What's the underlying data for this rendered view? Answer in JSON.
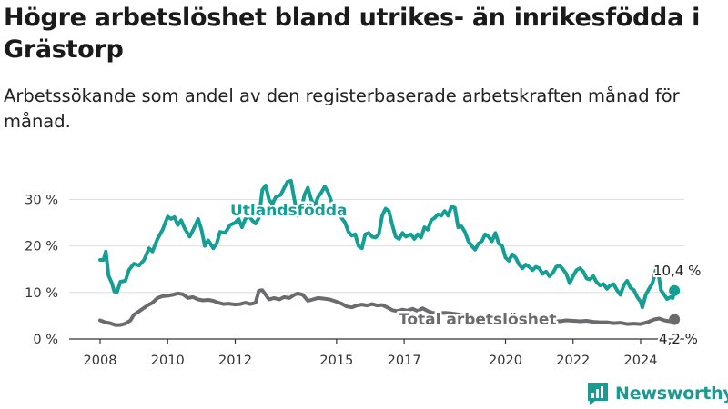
{
  "title": "Högre arbetslöshet bland utrikes- än inrikesfödda i Grästorp",
  "subtitle": "Arbetssökande som andel av den registerbaserade arbetskraften månad för månad.",
  "brand": "Newsworthy",
  "colors": {
    "foreign": "#159e94",
    "total": "#6b6b6e",
    "grid": "#dddddd",
    "axis": "#333333"
  },
  "chart_data": {
    "type": "line",
    "y_tick_labels": [
      "0 %",
      "10 %",
      "20 %",
      "30 %"
    ],
    "y_ticks": [
      0,
      10,
      20,
      30
    ],
    "x_tick_labels": [
      "2008",
      "2010",
      "2012",
      "2015",
      "2017",
      "2020",
      "2022",
      "2024"
    ],
    "x_ticks": [
      2008,
      2010,
      2012,
      2015,
      2017,
      2020,
      2022,
      2024
    ],
    "ylim": [
      0,
      35
    ],
    "xlim": [
      2007.1,
      2025.5
    ],
    "grid": true,
    "series": [
      {
        "name": "Utlandsfödda",
        "color": "#159e94",
        "end_label": "10,4 %",
        "points": [
          [
            2008.0,
            17.0
          ],
          [
            2008.1,
            17.0
          ],
          [
            2008.17,
            18.8
          ],
          [
            2008.25,
            13.6
          ],
          [
            2008.35,
            12.0
          ],
          [
            2008.42,
            10.2
          ],
          [
            2008.5,
            10.1
          ],
          [
            2008.6,
            12.3
          ],
          [
            2008.75,
            12.5
          ],
          [
            2008.85,
            14.8
          ],
          [
            2009.0,
            16.2
          ],
          [
            2009.15,
            15.8
          ],
          [
            2009.3,
            17.0
          ],
          [
            2009.45,
            19.5
          ],
          [
            2009.55,
            18.8
          ],
          [
            2009.7,
            21.5
          ],
          [
            2009.85,
            23.5
          ],
          [
            2010.0,
            26.3
          ],
          [
            2010.1,
            25.8
          ],
          [
            2010.2,
            26.2
          ],
          [
            2010.3,
            24.5
          ],
          [
            2010.4,
            25.5
          ],
          [
            2010.5,
            23.8
          ],
          [
            2010.65,
            22.0
          ],
          [
            2010.78,
            23.8
          ],
          [
            2010.9,
            25.8
          ],
          [
            2011.0,
            23.5
          ],
          [
            2011.1,
            20.0
          ],
          [
            2011.2,
            21.2
          ],
          [
            2011.35,
            19.5
          ],
          [
            2011.45,
            20.5
          ],
          [
            2011.55,
            23.0
          ],
          [
            2011.7,
            22.8
          ],
          [
            2011.85,
            24.5
          ],
          [
            2012.0,
            25.0
          ],
          [
            2012.1,
            25.8
          ],
          [
            2012.2,
            24.0
          ],
          [
            2012.3,
            25.8
          ],
          [
            2012.4,
            26.5
          ],
          [
            2012.5,
            25.5
          ],
          [
            2012.6,
            24.8
          ],
          [
            2012.7,
            26.0
          ],
          [
            2012.8,
            32.0
          ],
          [
            2012.9,
            33.0
          ],
          [
            2013.0,
            30.0
          ],
          [
            2013.1,
            29.0
          ],
          [
            2013.2,
            30.5
          ],
          [
            2013.35,
            31.0
          ],
          [
            2013.45,
            32.5
          ],
          [
            2013.55,
            33.8
          ],
          [
            2013.65,
            34.0
          ],
          [
            2013.75,
            30.0
          ],
          [
            2013.85,
            26.5
          ],
          [
            2013.95,
            27.5
          ],
          [
            2014.05,
            31.0
          ],
          [
            2014.15,
            32.5
          ],
          [
            2014.25,
            30.0
          ],
          [
            2014.35,
            28.5
          ],
          [
            2014.45,
            30.5
          ],
          [
            2014.55,
            31.5
          ],
          [
            2014.65,
            32.8
          ],
          [
            2014.75,
            31.5
          ],
          [
            2014.85,
            29.5
          ],
          [
            2014.95,
            28.0
          ],
          [
            2015.05,
            27.5
          ],
          [
            2015.15,
            26.0
          ],
          [
            2015.25,
            25.0
          ],
          [
            2015.35,
            23.0
          ],
          [
            2015.45,
            22.2
          ],
          [
            2015.55,
            22.5
          ],
          [
            2015.65,
            20.0
          ],
          [
            2015.75,
            19.5
          ],
          [
            2015.85,
            22.5
          ],
          [
            2015.95,
            22.8
          ],
          [
            2016.05,
            22.0
          ],
          [
            2016.15,
            21.8
          ],
          [
            2016.25,
            22.5
          ],
          [
            2016.35,
            26.5
          ],
          [
            2016.45,
            28.0
          ],
          [
            2016.55,
            27.5
          ],
          [
            2016.65,
            24.5
          ],
          [
            2016.75,
            22.0
          ],
          [
            2016.85,
            21.5
          ],
          [
            2016.95,
            22.8
          ],
          [
            2017.05,
            22.0
          ],
          [
            2017.2,
            22.5
          ],
          [
            2017.3,
            21.5
          ],
          [
            2017.4,
            22.5
          ],
          [
            2017.5,
            21.8
          ],
          [
            2017.6,
            24.0
          ],
          [
            2017.7,
            23.5
          ],
          [
            2017.8,
            25.5
          ],
          [
            2017.9,
            26.0
          ],
          [
            2018.0,
            26.8
          ],
          [
            2018.1,
            26.5
          ],
          [
            2018.2,
            27.5
          ],
          [
            2018.3,
            26.5
          ],
          [
            2018.4,
            28.5
          ],
          [
            2018.5,
            28.2
          ],
          [
            2018.6,
            24.0
          ],
          [
            2018.7,
            24.2
          ],
          [
            2018.8,
            23.0
          ],
          [
            2018.9,
            21.0
          ],
          [
            2019.0,
            20.0
          ],
          [
            2019.1,
            19.2
          ],
          [
            2019.2,
            20.5
          ],
          [
            2019.3,
            21.0
          ],
          [
            2019.4,
            22.5
          ],
          [
            2019.5,
            22.0
          ],
          [
            2019.6,
            21.0
          ],
          [
            2019.7,
            22.8
          ],
          [
            2019.8,
            20.5
          ],
          [
            2019.9,
            20.0
          ],
          [
            2020.0,
            17.5
          ],
          [
            2020.1,
            16.8
          ],
          [
            2020.2,
            18.2
          ],
          [
            2020.3,
            17.5
          ],
          [
            2020.4,
            16.0
          ],
          [
            2020.5,
            15.2
          ],
          [
            2020.6,
            16.0
          ],
          [
            2020.7,
            15.5
          ],
          [
            2020.8,
            14.8
          ],
          [
            2020.9,
            15.5
          ],
          [
            2021.0,
            15.2
          ],
          [
            2021.1,
            14.0
          ],
          [
            2021.2,
            14.5
          ],
          [
            2021.3,
            13.5
          ],
          [
            2021.4,
            14.2
          ],
          [
            2021.5,
            15.5
          ],
          [
            2021.6,
            15.8
          ],
          [
            2021.7,
            15.0
          ],
          [
            2021.8,
            14.0
          ],
          [
            2021.9,
            12.0
          ],
          [
            2022.0,
            13.5
          ],
          [
            2022.1,
            14.8
          ],
          [
            2022.2,
            15.2
          ],
          [
            2022.3,
            14.5
          ],
          [
            2022.4,
            13.0
          ],
          [
            2022.5,
            12.8
          ],
          [
            2022.6,
            13.5
          ],
          [
            2022.7,
            12.2
          ],
          [
            2022.8,
            11.5
          ],
          [
            2022.9,
            11.8
          ],
          [
            2023.0,
            10.8
          ],
          [
            2023.1,
            11.5
          ],
          [
            2023.2,
            11.8
          ],
          [
            2023.3,
            10.5
          ],
          [
            2023.4,
            9.5
          ],
          [
            2023.5,
            11.5
          ],
          [
            2023.6,
            12.5
          ],
          [
            2023.7,
            11.0
          ],
          [
            2023.8,
            10.5
          ],
          [
            2023.9,
            9.0
          ],
          [
            2024.0,
            8.0
          ],
          [
            2024.05,
            6.8
          ],
          [
            2024.15,
            9.5
          ],
          [
            2024.25,
            10.8
          ],
          [
            2024.35,
            12.0
          ],
          [
            2024.45,
            14.8
          ],
          [
            2024.52,
            14.5
          ],
          [
            2024.6,
            10.5
          ],
          [
            2024.7,
            9.5
          ],
          [
            2024.78,
            8.6
          ],
          [
            2024.88,
            9.0
          ],
          [
            2024.95,
            8.8
          ],
          [
            2025.0,
            10.4
          ]
        ]
      },
      {
        "name": "Total arbetslöshet",
        "color": "#6b6b6e",
        "end_label": "4,2 %",
        "points": [
          [
            2008.0,
            4.0
          ],
          [
            2008.15,
            3.6
          ],
          [
            2008.3,
            3.4
          ],
          [
            2008.45,
            3.0
          ],
          [
            2008.6,
            3.0
          ],
          [
            2008.75,
            3.3
          ],
          [
            2008.9,
            4.0
          ],
          [
            2009.0,
            5.2
          ],
          [
            2009.2,
            6.2
          ],
          [
            2009.4,
            7.2
          ],
          [
            2009.55,
            7.8
          ],
          [
            2009.7,
            8.8
          ],
          [
            2009.85,
            9.2
          ],
          [
            2010.0,
            9.3
          ],
          [
            2010.15,
            9.5
          ],
          [
            2010.3,
            9.8
          ],
          [
            2010.45,
            9.6
          ],
          [
            2010.6,
            8.8
          ],
          [
            2010.75,
            9.0
          ],
          [
            2010.9,
            8.5
          ],
          [
            2011.05,
            8.3
          ],
          [
            2011.2,
            8.4
          ],
          [
            2011.35,
            8.2
          ],
          [
            2011.5,
            7.8
          ],
          [
            2011.65,
            7.5
          ],
          [
            2011.8,
            7.6
          ],
          [
            2012.0,
            7.4
          ],
          [
            2012.15,
            7.5
          ],
          [
            2012.3,
            7.8
          ],
          [
            2012.45,
            7.5
          ],
          [
            2012.6,
            7.8
          ],
          [
            2012.7,
            10.4
          ],
          [
            2012.8,
            10.5
          ],
          [
            2012.9,
            9.5
          ],
          [
            2013.0,
            8.5
          ],
          [
            2013.15,
            8.8
          ],
          [
            2013.3,
            8.5
          ],
          [
            2013.45,
            9.0
          ],
          [
            2013.6,
            8.8
          ],
          [
            2013.75,
            9.5
          ],
          [
            2013.85,
            9.8
          ],
          [
            2014.0,
            9.5
          ],
          [
            2014.15,
            8.2
          ],
          [
            2014.3,
            8.5
          ],
          [
            2014.45,
            8.8
          ],
          [
            2014.6,
            8.7
          ],
          [
            2014.8,
            8.5
          ],
          [
            2015.0,
            8.0
          ],
          [
            2015.15,
            7.6
          ],
          [
            2015.3,
            7.0
          ],
          [
            2015.45,
            6.8
          ],
          [
            2015.6,
            7.2
          ],
          [
            2015.75,
            7.4
          ],
          [
            2015.9,
            7.2
          ],
          [
            2016.05,
            7.5
          ],
          [
            2016.2,
            7.2
          ],
          [
            2016.35,
            7.3
          ],
          [
            2016.5,
            6.8
          ],
          [
            2016.65,
            6.2
          ],
          [
            2016.8,
            6.0
          ],
          [
            2016.95,
            6.3
          ],
          [
            2017.1,
            6.1
          ],
          [
            2017.25,
            6.5
          ],
          [
            2017.4,
            6.0
          ],
          [
            2017.55,
            6.6
          ],
          [
            2017.7,
            6.0
          ],
          [
            2017.85,
            5.6
          ],
          [
            2018.0,
            5.5
          ],
          [
            2018.2,
            5.6
          ],
          [
            2018.4,
            5.5
          ],
          [
            2018.6,
            5.3
          ],
          [
            2018.8,
            5.0
          ],
          [
            2019.0,
            4.8
          ],
          [
            2019.2,
            4.6
          ],
          [
            2019.4,
            4.5
          ],
          [
            2019.6,
            4.4
          ],
          [
            2019.8,
            4.3
          ],
          [
            2020.0,
            4.4
          ],
          [
            2020.2,
            4.5
          ],
          [
            2020.4,
            4.3
          ],
          [
            2020.6,
            4.1
          ],
          [
            2020.8,
            4.3
          ],
          [
            2021.0,
            4.2
          ],
          [
            2021.2,
            4.1
          ],
          [
            2021.4,
            4.0
          ],
          [
            2021.6,
            3.8
          ],
          [
            2021.8,
            4.0
          ],
          [
            2022.0,
            3.9
          ],
          [
            2022.2,
            3.8
          ],
          [
            2022.4,
            3.9
          ],
          [
            2022.6,
            3.7
          ],
          [
            2022.8,
            3.6
          ],
          [
            2023.0,
            3.6
          ],
          [
            2023.2,
            3.4
          ],
          [
            2023.4,
            3.5
          ],
          [
            2023.6,
            3.2
          ],
          [
            2023.8,
            3.3
          ],
          [
            2024.0,
            3.2
          ],
          [
            2024.2,
            3.6
          ],
          [
            2024.4,
            4.2
          ],
          [
            2024.55,
            4.4
          ],
          [
            2024.7,
            4.0
          ],
          [
            2024.85,
            3.8
          ],
          [
            2025.0,
            4.2
          ]
        ]
      }
    ]
  }
}
